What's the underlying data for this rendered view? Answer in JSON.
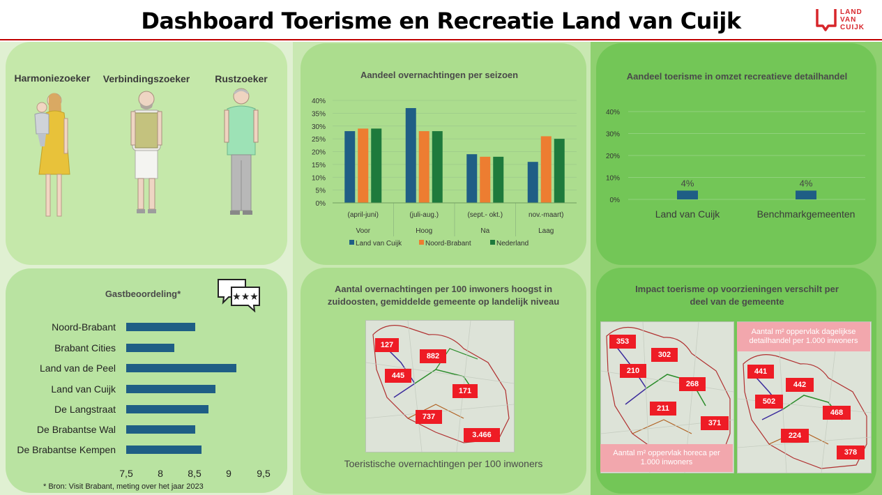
{
  "header": {
    "title": "Dashboard Toerisme en Recreatie Land van Cuijk",
    "logo_lines": [
      "LAND",
      "VAN",
      "CUIJK"
    ]
  },
  "personas": {
    "labels": [
      "Harmoniezoeker",
      "Verbindingszoeker",
      "Rustzoeker"
    ]
  },
  "guest_rating": {
    "title": "Gastbeoordeling*",
    "footnote": "* Bron: Visit Brabant, meting over het jaar 2023",
    "chart_data": {
      "type": "bar",
      "orientation": "horizontal",
      "categories": [
        "Noord-Brabant",
        "Brabant Cities",
        "Land van de Peel",
        "Land van Cuijk",
        "De Langstraat",
        "De Brabantse Wal",
        "De Brabantse Kempen"
      ],
      "values": [
        8.5,
        8.2,
        9.1,
        8.8,
        8.7,
        8.5,
        8.6
      ],
      "xlim": [
        7.5,
        9.5
      ],
      "xticks": [
        "7,5",
        "8",
        "8,5",
        "9",
        "9,5"
      ],
      "color": "#1f5e85"
    }
  },
  "season_chart": {
    "title": "Aandeel overnachtingen per seizoen",
    "chart_data": {
      "type": "bar",
      "categories": [
        "(april-juni)",
        "(juli-aug.)",
        "(sept.- okt.)",
        "nov.-maart)"
      ],
      "category_groups": [
        "Voor",
        "Hoog",
        "Na",
        "Laag"
      ],
      "yticks": [
        "0%",
        "5%",
        "10%",
        "15%",
        "20%",
        "25%",
        "30%",
        "35%",
        "40%"
      ],
      "ylim": [
        0,
        40
      ],
      "series": [
        {
          "name": "Land van Cuijk",
          "color": "#1f5e85",
          "values": [
            28,
            37,
            19,
            16
          ]
        },
        {
          "name": "Noord-Brabant",
          "color": "#ed7d31",
          "values": [
            29,
            28,
            18,
            26
          ]
        },
        {
          "name": "Nederland",
          "color": "#1e7a3c",
          "values": [
            29,
            28,
            18,
            25
          ]
        }
      ]
    }
  },
  "retail_chart": {
    "title": "Aandeel toerisme in omzet recreatieve detailhandel",
    "chart_data": {
      "type": "bar",
      "categories": [
        "Land van Cuijk",
        "Benchmarkgemeenten"
      ],
      "values": [
        4,
        4
      ],
      "data_labels": [
        "4%",
        "4%"
      ],
      "yticks": [
        "0%",
        "10%",
        "20%",
        "30%",
        "40%"
      ],
      "ylim": [
        0,
        40
      ],
      "color": "#1f5e85"
    }
  },
  "overnight_map": {
    "title_line1": "Aantal overnachtingen per 100 inwoners hoogst in",
    "title_line2": "zuidoosten, gemiddelde gemeente op landelijk niveau",
    "caption": "Toeristische overnachtingen per 100 inwoners",
    "values": [
      "127",
      "882",
      "445",
      "171",
      "737",
      "3.466"
    ]
  },
  "impact": {
    "title_line1": "Impact toerisme op voorzieningen verschilt per",
    "title_line2": "deel van de gemeente",
    "horeca_map": {
      "values": [
        "353",
        "302",
        "210",
        "268",
        "211",
        "371"
      ],
      "label_line1": "Aantal m² oppervlak horeca per",
      "label_line2": "1.000 inwoners"
    },
    "retail_map": {
      "values": [
        "441",
        "442",
        "502",
        "468",
        "224",
        "378"
      ],
      "label_line1": "Aantal m² oppervlak dagelijkse",
      "label_line2": "detailhandel per 1.000 inwoners"
    }
  },
  "colors": {
    "accent_red": "#c00000",
    "map_label_red": "#ee1c25"
  }
}
